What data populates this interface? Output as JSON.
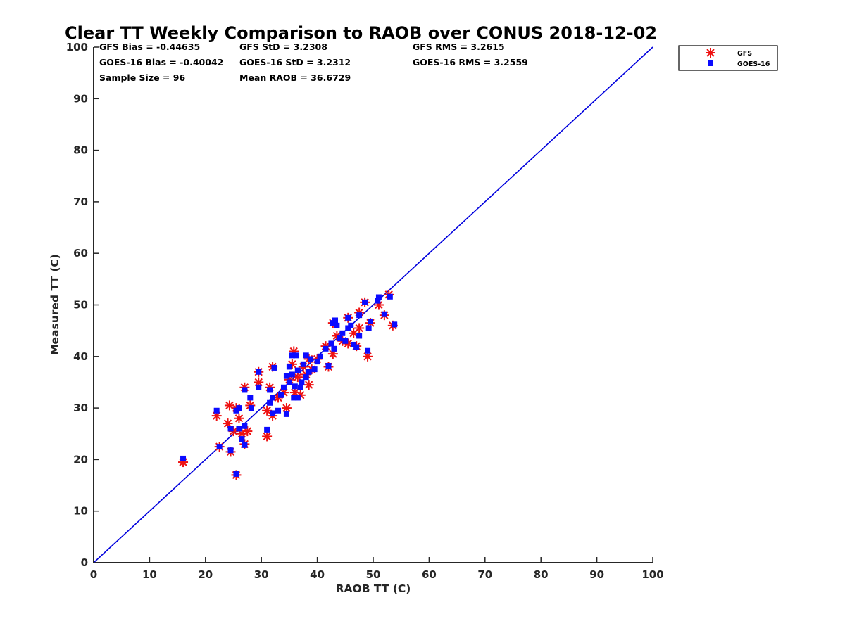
{
  "chart_data": {
    "type": "scatter",
    "title": "Clear TT Weekly Comparison to RAOB over CONUS 2018-12-02",
    "xlabel": "RAOB TT (C)",
    "ylabel": "Measured TT (C)",
    "xlim": [
      0,
      100
    ],
    "ylim": [
      0,
      100
    ],
    "xticks": [
      "0",
      "10",
      "20",
      "30",
      "40",
      "50",
      "60",
      "70",
      "80",
      "90",
      "100"
    ],
    "yticks": [
      "0",
      "10",
      "20",
      "30",
      "40",
      "50",
      "60",
      "70",
      "80",
      "90",
      "100"
    ],
    "grid": false,
    "legend_position": "outside top-right",
    "stats": [
      "GFS Bias = -0.44635",
      "GFS StD = 3.2308",
      "GFS RMS = 3.2615",
      "GOES-16 Bias = -0.40042",
      "GOES-16 StD = 3.2312",
      "GOES-16 RMS = 3.2559",
      "Sample Size = 96",
      "Mean RAOB = 36.6729"
    ],
    "reference_line": {
      "name": "1:1",
      "color": "#0000dd",
      "from": [
        0,
        0
      ],
      "to": [
        100,
        100
      ]
    },
    "series": [
      {
        "name": "GFS",
        "marker": "asterisk",
        "color": "#ee1111",
        "points": [
          [
            16,
            19.5
          ],
          [
            22,
            28.5
          ],
          [
            22.5,
            22.5
          ],
          [
            24,
            27
          ],
          [
            24.3,
            30.5
          ],
          [
            24.5,
            21.5
          ],
          [
            25,
            25.5
          ],
          [
            25.5,
            17
          ],
          [
            25.5,
            30
          ],
          [
            26,
            28
          ],
          [
            26.5,
            25
          ],
          [
            27,
            34
          ],
          [
            27,
            23
          ],
          [
            27.5,
            25.5
          ],
          [
            28,
            30.5
          ],
          [
            29.5,
            35
          ],
          [
            29.5,
            37
          ],
          [
            31,
            24.5
          ],
          [
            31,
            29.5
          ],
          [
            31.5,
            34
          ],
          [
            32,
            28.5
          ],
          [
            32,
            38
          ],
          [
            33,
            32
          ],
          [
            34,
            33
          ],
          [
            34.5,
            30
          ],
          [
            35,
            35.5
          ],
          [
            35.5,
            38.5
          ],
          [
            35.8,
            41
          ],
          [
            36,
            33
          ],
          [
            36.5,
            36
          ],
          [
            37,
            32.5
          ],
          [
            37.5,
            38
          ],
          [
            38,
            36.5
          ],
          [
            38.5,
            34.5
          ],
          [
            38.5,
            39.5
          ],
          [
            39,
            37.5
          ],
          [
            40,
            39.5
          ],
          [
            41.5,
            42
          ],
          [
            42,
            38
          ],
          [
            42.8,
            40.5
          ],
          [
            42.8,
            46.5
          ],
          [
            43.5,
            44
          ],
          [
            44.5,
            43
          ],
          [
            45.5,
            47.5
          ],
          [
            45.5,
            42.5
          ],
          [
            46.5,
            44.5
          ],
          [
            47,
            42
          ],
          [
            47.5,
            48.5
          ],
          [
            47.5,
            45.5
          ],
          [
            48.5,
            50.5
          ],
          [
            49,
            40
          ],
          [
            49.5,
            46.5
          ],
          [
            51,
            50
          ],
          [
            52,
            48
          ],
          [
            52.8,
            52
          ],
          [
            53.5,
            46
          ]
        ]
      },
      {
        "name": "GOES-16",
        "marker": "square",
        "color": "#0b0bff",
        "points": [
          [
            16,
            20.2
          ],
          [
            22,
            29.5
          ],
          [
            22.5,
            22.5
          ],
          [
            24.5,
            21.8
          ],
          [
            24.5,
            26
          ],
          [
            25.5,
            17.2
          ],
          [
            25.5,
            29.5
          ],
          [
            26,
            26
          ],
          [
            26,
            30
          ],
          [
            26.5,
            24
          ],
          [
            27,
            33.5
          ],
          [
            27,
            26.5
          ],
          [
            27,
            22.8
          ],
          [
            28,
            32
          ],
          [
            28.2,
            30
          ],
          [
            29.5,
            34
          ],
          [
            29.5,
            37
          ],
          [
            31,
            25.8
          ],
          [
            31.5,
            31
          ],
          [
            31.5,
            33.5
          ],
          [
            32,
            29
          ],
          [
            32,
            32
          ],
          [
            32.3,
            37.8
          ],
          [
            33,
            29.5
          ],
          [
            33.5,
            32.5
          ],
          [
            34,
            34
          ],
          [
            34.5,
            28.8
          ],
          [
            34.5,
            36.2
          ],
          [
            35,
            35
          ],
          [
            35,
            38
          ],
          [
            35.5,
            40.2
          ],
          [
            35.5,
            36.5
          ],
          [
            35.8,
            32
          ],
          [
            36,
            34.2
          ],
          [
            36.2,
            40.2
          ],
          [
            36.5,
            37.3
          ],
          [
            36.5,
            32
          ],
          [
            37,
            34
          ],
          [
            37.2,
            35
          ],
          [
            37.5,
            38.5
          ],
          [
            38,
            40.2
          ],
          [
            38,
            36
          ],
          [
            38.5,
            37
          ],
          [
            38.8,
            39.5
          ],
          [
            39.5,
            37.5
          ],
          [
            40,
            39
          ],
          [
            40.5,
            40
          ],
          [
            41.5,
            41.5
          ],
          [
            42,
            38.2
          ],
          [
            42.5,
            42.5
          ],
          [
            42.8,
            46.5
          ],
          [
            43,
            41.5
          ],
          [
            43.2,
            47
          ],
          [
            43.5,
            46
          ],
          [
            44,
            43.5
          ],
          [
            44.5,
            44.5
          ],
          [
            45,
            43
          ],
          [
            45.5,
            45.5
          ],
          [
            45.5,
            47.5
          ],
          [
            46,
            46
          ],
          [
            46.5,
            42.3
          ],
          [
            47,
            41.8
          ],
          [
            47.5,
            44
          ],
          [
            47.5,
            48
          ],
          [
            48.5,
            50.5
          ],
          [
            49,
            41.1
          ],
          [
            49.5,
            46.8
          ],
          [
            49.2,
            45.5
          ],
          [
            50.8,
            50.8
          ],
          [
            51,
            51.5
          ],
          [
            52,
            48.2
          ],
          [
            53,
            51.6
          ],
          [
            53.8,
            46.2
          ]
        ]
      }
    ]
  }
}
